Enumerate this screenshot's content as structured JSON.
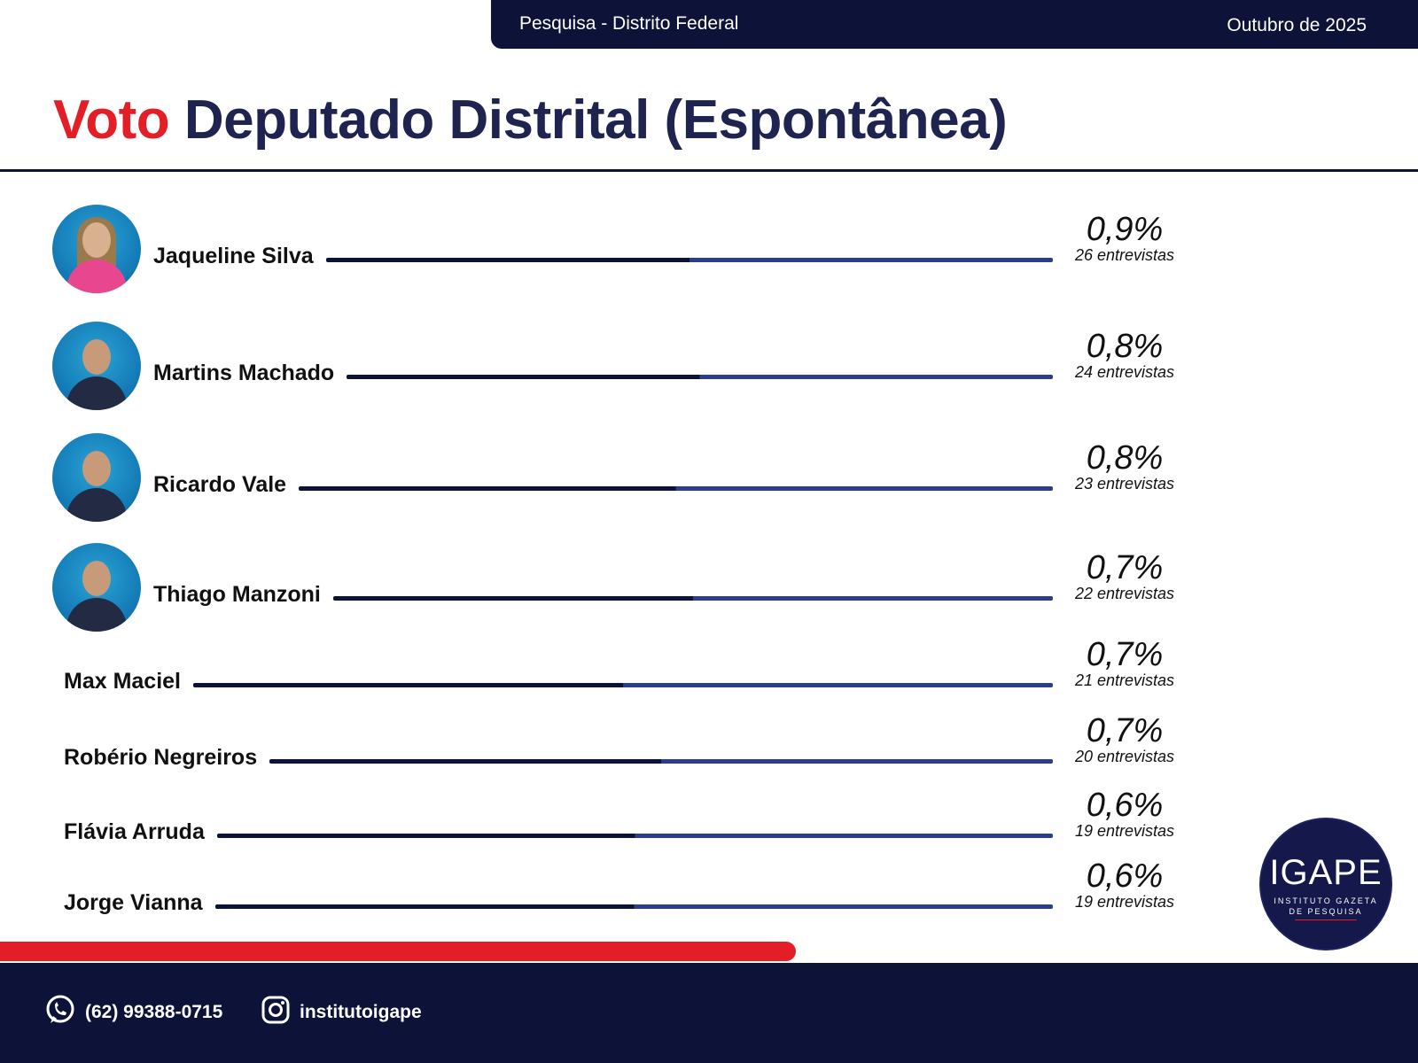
{
  "header": {
    "survey": "Pesquisa - Distrito Federal",
    "date": "Outubro de 2025"
  },
  "title": {
    "accent": "Voto",
    "rest": "Deputado Distrital (Espontânea)"
  },
  "chart_data": {
    "type": "bar",
    "title": "Voto Deputado Distrital (Espontânea)",
    "categories": [
      "Jaqueline Silva",
      "Martins Machado",
      "Ricardo Vale",
      "Thiago Manzoni",
      "Max Maciel",
      "Robério Negreiros",
      "Flávia Arruda",
      "Jorge Vianna"
    ],
    "series": [
      {
        "values": [
          0.9,
          0.8,
          0.8,
          0.7,
          0.7,
          0.7,
          0.6,
          0.6
        ],
        "labels": [
          "0,9%",
          "0,8%",
          "0,8%",
          "0,7%",
          "0,7%",
          "0,7%",
          "0,6%",
          "0,6%"
        ]
      }
    ],
    "counts": [
      26,
      24,
      23,
      22,
      21,
      20,
      19,
      19
    ],
    "count_labels": [
      "26 entrevistas",
      "24 entrevistas",
      "23 entrevistas",
      "22 entrevistas",
      "21 entrevistas",
      "20 entrevistas",
      "19 entrevistas",
      "19 entrevistas"
    ],
    "has_photo": [
      true,
      true,
      true,
      true,
      false,
      false,
      false,
      false
    ],
    "photo_icon": [
      "woman-avatar-icon",
      "man-avatar-icon",
      "man-avatar-icon",
      "man-avatar-icon"
    ],
    "colors": {
      "bar_dark": "#0c1238",
      "bar_blue": "#2a3d8f"
    }
  },
  "footer": {
    "phone": "(62) 99388-0715",
    "instagram": "institutoigape",
    "icons": [
      "whatsapp-icon",
      "instagram-icon"
    ]
  },
  "logo": {
    "brand": "IGAPE",
    "line1": "INSTITUTO GAZETA",
    "line2": "DE PESQUISA"
  },
  "colors": {
    "navy": "#0c1238",
    "title": "#1e2350",
    "red": "#e31e26"
  }
}
